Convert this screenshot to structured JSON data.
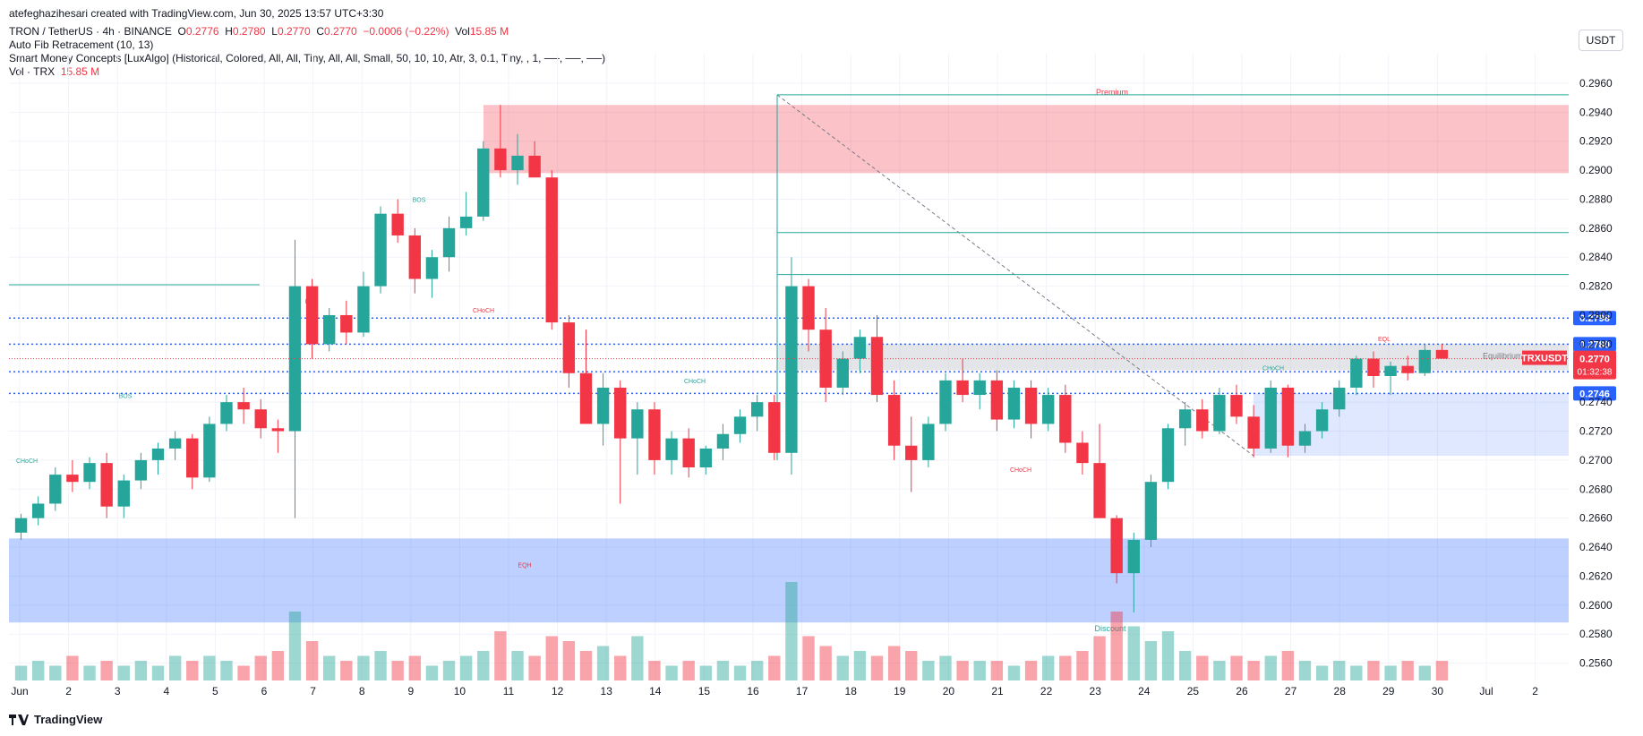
{
  "attribution": "atefeghazihesari created with TradingView.com, Jun 30, 2025 13:57 UTC+3:30",
  "header": {
    "symbol": "TRON / TetherUS · 4h · BINANCE",
    "o_label": "O",
    "o": "0.2776",
    "h_label": "H",
    "h": "0.2780",
    "l_label": "L",
    "l": "0.2770",
    "c_label": "C",
    "c": "0.2770",
    "change": "−0.0006 (−0.22%)",
    "vol_label": "Vol",
    "vol": "15.85 M",
    "indicator1": "Auto Fib Retracement (10, 13)",
    "indicator2": "Smart Money Concepts [LuxAlgo] (Historical, Colored, All, All, Tiny, All, All, Small, 50, 10, 10, Atr, 3, 0.1, Tiny, , 1, ──, ──, ──)",
    "vol_indicator": "Vol · TRX",
    "vol_indicator_value": "15.85 M"
  },
  "currency_button": "USDT",
  "footer_brand": "TradingView",
  "colors": {
    "up": "#26a69a",
    "down": "#f23645",
    "blue": "#2962ff",
    "grid": "#f0f3fa",
    "axis_text": "#131722"
  },
  "chart_data": {
    "type": "candlestick",
    "symbol": "TRXUSDT",
    "timeframe": "4h",
    "x_tick_labels": [
      "Jun",
      "2",
      "3",
      "4",
      "5",
      "6",
      "7",
      "8",
      "9",
      "10",
      "11",
      "12",
      "13",
      "14",
      "15",
      "16",
      "17",
      "18",
      "19",
      "20",
      "21",
      "22",
      "23",
      "24",
      "25",
      "26",
      "27",
      "28",
      "29",
      "30",
      "Jul",
      "2"
    ],
    "y_tick_labels": [
      "0.2560",
      "0.2580",
      "0.2600",
      "0.2620",
      "0.2640",
      "0.2660",
      "0.2680",
      "0.2700",
      "0.2720",
      "0.2740",
      "0.2760",
      "0.2780",
      "0.2800",
      "0.2820",
      "0.2840",
      "0.2860",
      "0.2880",
      "0.2900",
      "0.2920",
      "0.2940",
      "0.2960"
    ],
    "ylim": [
      0.2548,
      0.2968
    ],
    "ticks": [
      0.256,
      0.258,
      0.26,
      0.262,
      0.264,
      0.266,
      0.268,
      0.27,
      0.272,
      0.274,
      0.276,
      0.278,
      0.28,
      0.282,
      0.284,
      0.286,
      0.288,
      0.29,
      0.292,
      0.294,
      0.296
    ],
    "ohlc_series": [
      [
        0.265,
        0.2663,
        0.2645,
        0.266
      ],
      [
        0.266,
        0.2675,
        0.2655,
        0.267
      ],
      [
        0.267,
        0.2695,
        0.2665,
        0.269
      ],
      [
        0.269,
        0.27,
        0.2678,
        0.2685
      ],
      [
        0.2685,
        0.2702,
        0.268,
        0.2698
      ],
      [
        0.2698,
        0.2705,
        0.266,
        0.2668
      ],
      [
        0.2668,
        0.269,
        0.266,
        0.2686
      ],
      [
        0.2686,
        0.2705,
        0.268,
        0.27
      ],
      [
        0.27,
        0.2712,
        0.269,
        0.2708
      ],
      [
        0.2708,
        0.272,
        0.27,
        0.2715
      ],
      [
        0.2715,
        0.2718,
        0.268,
        0.2688
      ],
      [
        0.2688,
        0.273,
        0.2685,
        0.2725
      ],
      [
        0.2725,
        0.2745,
        0.272,
        0.274
      ],
      [
        0.274,
        0.275,
        0.2725,
        0.2735
      ],
      [
        0.2735,
        0.2742,
        0.2715,
        0.2722
      ],
      [
        0.2722,
        0.2728,
        0.2705,
        0.272
      ],
      [
        0.272,
        0.2852,
        0.266,
        0.282
      ],
      [
        0.282,
        0.2825,
        0.277,
        0.278
      ],
      [
        0.278,
        0.2805,
        0.2775,
        0.28
      ],
      [
        0.28,
        0.281,
        0.278,
        0.2788
      ],
      [
        0.2788,
        0.283,
        0.2785,
        0.282
      ],
      [
        0.282,
        0.2875,
        0.2815,
        0.287
      ],
      [
        0.287,
        0.288,
        0.285,
        0.2855
      ],
      [
        0.2855,
        0.286,
        0.2815,
        0.2825
      ],
      [
        0.2825,
        0.2845,
        0.2812,
        0.284
      ],
      [
        0.284,
        0.2868,
        0.283,
        0.286
      ],
      [
        0.286,
        0.2885,
        0.2855,
        0.2868
      ],
      [
        0.2868,
        0.292,
        0.2865,
        0.2915
      ],
      [
        0.2915,
        0.2945,
        0.2895,
        0.29
      ],
      [
        0.29,
        0.2925,
        0.289,
        0.291
      ],
      [
        0.291,
        0.292,
        0.2895,
        0.2895
      ],
      [
        0.2895,
        0.29,
        0.279,
        0.2795
      ],
      [
        0.2795,
        0.28,
        0.275,
        0.276
      ],
      [
        0.276,
        0.279,
        0.274,
        0.2725
      ],
      [
        0.2725,
        0.276,
        0.271,
        0.275
      ],
      [
        0.275,
        0.2755,
        0.267,
        0.2715
      ],
      [
        0.2715,
        0.274,
        0.269,
        0.2735
      ],
      [
        0.2735,
        0.274,
        0.269,
        0.27
      ],
      [
        0.27,
        0.272,
        0.269,
        0.2715
      ],
      [
        0.2715,
        0.2722,
        0.2688,
        0.2695
      ],
      [
        0.2695,
        0.271,
        0.269,
        0.2708
      ],
      [
        0.2708,
        0.2725,
        0.27,
        0.2718
      ],
      [
        0.2718,
        0.2735,
        0.2712,
        0.273
      ],
      [
        0.273,
        0.2745,
        0.272,
        0.274
      ],
      [
        0.274,
        0.2745,
        0.27,
        0.2705
      ],
      [
        0.2705,
        0.284,
        0.269,
        0.282
      ],
      [
        0.282,
        0.2825,
        0.2775,
        0.279
      ],
      [
        0.279,
        0.2805,
        0.274,
        0.275
      ],
      [
        0.275,
        0.2775,
        0.2745,
        0.277
      ],
      [
        0.277,
        0.279,
        0.276,
        0.2785
      ],
      [
        0.2785,
        0.28,
        0.274,
        0.2745
      ],
      [
        0.2745,
        0.2755,
        0.27,
        0.271
      ],
      [
        0.271,
        0.273,
        0.2678,
        0.27
      ],
      [
        0.27,
        0.273,
        0.2695,
        0.2725
      ],
      [
        0.2725,
        0.276,
        0.272,
        0.2755
      ],
      [
        0.2755,
        0.277,
        0.274,
        0.2745
      ],
      [
        0.2745,
        0.276,
        0.2735,
        0.2755
      ],
      [
        0.2755,
        0.2762,
        0.272,
        0.2728
      ],
      [
        0.2728,
        0.2755,
        0.2722,
        0.275
      ],
      [
        0.275,
        0.2755,
        0.2715,
        0.2725
      ],
      [
        0.2725,
        0.275,
        0.272,
        0.2745
      ],
      [
        0.2745,
        0.2752,
        0.2705,
        0.2712
      ],
      [
        0.2712,
        0.272,
        0.269,
        0.2698
      ],
      [
        0.2698,
        0.2725,
        0.266,
        0.266
      ],
      [
        0.266,
        0.2662,
        0.2615,
        0.2622
      ],
      [
        0.2622,
        0.265,
        0.2595,
        0.2645
      ],
      [
        0.2645,
        0.269,
        0.264,
        0.2685
      ],
      [
        0.2685,
        0.2725,
        0.268,
        0.2722
      ],
      [
        0.2722,
        0.274,
        0.271,
        0.2735
      ],
      [
        0.2735,
        0.2742,
        0.2715,
        0.272
      ],
      [
        0.272,
        0.275,
        0.2718,
        0.2745
      ],
      [
        0.2745,
        0.2752,
        0.2725,
        0.273
      ],
      [
        0.273,
        0.2738,
        0.2702,
        0.2708
      ],
      [
        0.2708,
        0.2755,
        0.2705,
        0.275
      ],
      [
        0.275,
        0.2752,
        0.2702,
        0.271
      ],
      [
        0.271,
        0.2725,
        0.2705,
        0.272
      ],
      [
        0.272,
        0.274,
        0.2715,
        0.2735
      ],
      [
        0.2735,
        0.2755,
        0.273,
        0.275
      ],
      [
        0.275,
        0.2772,
        0.2745,
        0.277
      ],
      [
        0.277,
        0.2775,
        0.275,
        0.2758
      ],
      [
        0.2758,
        0.2768,
        0.2745,
        0.2765
      ],
      [
        0.2765,
        0.2772,
        0.2755,
        0.276
      ],
      [
        0.276,
        0.278,
        0.2758,
        0.2776
      ],
      [
        0.2776,
        0.278,
        0.277,
        0.277
      ]
    ],
    "volume_series": [
      3,
      4,
      3,
      5,
      3,
      4,
      3,
      4,
      3,
      5,
      4,
      5,
      4,
      3,
      5,
      6,
      14,
      8,
      5,
      4,
      5,
      6,
      4,
      5,
      3,
      4,
      5,
      6,
      10,
      6,
      5,
      9,
      8,
      6,
      7,
      5,
      9,
      4,
      3,
      4,
      3,
      4,
      3,
      4,
      5,
      20,
      9,
      7,
      5,
      6,
      5,
      7,
      6,
      4,
      5,
      4,
      4,
      4,
      3,
      4,
      5,
      5,
      6,
      9,
      14,
      11,
      8,
      10,
      6,
      5,
      4,
      5,
      4,
      5,
      6,
      4,
      3,
      4,
      3,
      4,
      3,
      4,
      3,
      4
    ],
    "horizontal_levels": [
      {
        "price": 0.2798,
        "label": "0.2798",
        "style": "dotted",
        "color": "#2962ff"
      },
      {
        "price": 0.278,
        "label": "0.2780",
        "style": "dotted",
        "color": "#2962ff"
      },
      {
        "price": 0.2761,
        "label": "0.2761",
        "style": "dotted",
        "color": "#2962ff"
      },
      {
        "price": 0.2746,
        "label": "0.2746",
        "style": "dotted",
        "color": "#2962ff"
      }
    ],
    "current_price": {
      "symbol": "TRXUSDT",
      "price": "0.2770",
      "countdown": "01:32:38"
    },
    "annotations": [
      "Premium",
      "Equilibrium",
      "Discount",
      "BOS",
      "BOS",
      "BOS",
      "CHoCH",
      "CHoCH",
      "CHoCH",
      "CHoCH",
      "CHoCH",
      "EQH",
      "EQL"
    ]
  }
}
